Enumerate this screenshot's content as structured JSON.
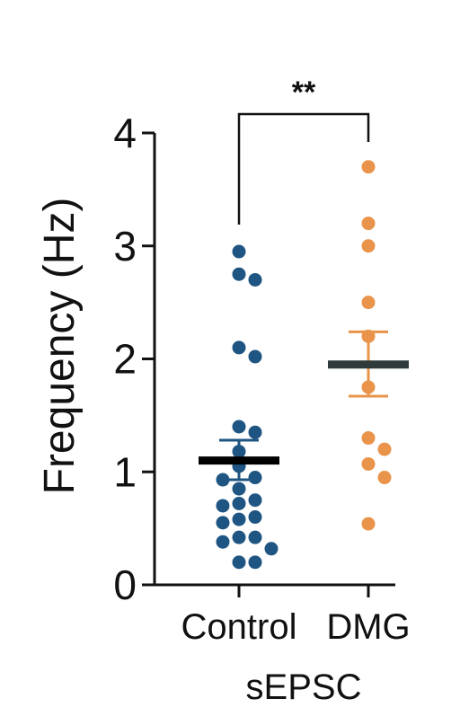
{
  "chart_data": {
    "type": "scatter",
    "ylabel": "Frequency (Hz)",
    "xlabel": "sEPSC",
    "categories": [
      "Control",
      "DMG"
    ],
    "ylim": [
      0,
      4
    ],
    "yticks": [
      0,
      1,
      2,
      3,
      4
    ],
    "grid": false,
    "significance": "**",
    "series": [
      {
        "color": "#1f5582",
        "mean_color": "#000000",
        "mean": 1.1,
        "sem": [
          0.93,
          1.28
        ],
        "values": [
          2.95,
          2.75,
          2.7,
          2.1,
          2.02,
          1.4,
          1.35,
          1.18,
          1.05,
          0.95,
          0.93,
          0.85,
          0.75,
          0.72,
          0.7,
          0.6,
          0.58,
          0.55,
          0.42,
          0.42,
          0.38,
          0.32,
          0.2,
          0.2
        ]
      },
      {
        "color": "#e9944a",
        "mean_color": "#2e3b3a",
        "mean": 1.95,
        "sem": [
          1.67,
          2.24
        ],
        "values": [
          3.7,
          3.2,
          3.0,
          2.5,
          2.2,
          1.75,
          1.3,
          1.2,
          1.07,
          0.95,
          0.54
        ]
      }
    ]
  }
}
